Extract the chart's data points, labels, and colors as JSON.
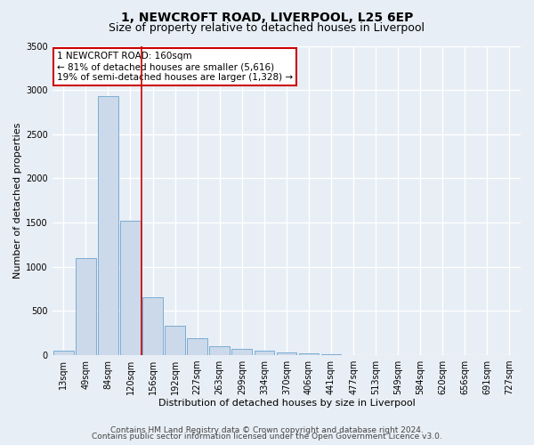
{
  "title": "1, NEWCROFT ROAD, LIVERPOOL, L25 6EP",
  "subtitle": "Size of property relative to detached houses in Liverpool",
  "xlabel": "Distribution of detached houses by size in Liverpool",
  "ylabel": "Number of detached properties",
  "bar_labels": [
    "13sqm",
    "49sqm",
    "84sqm",
    "120sqm",
    "156sqm",
    "192sqm",
    "227sqm",
    "263sqm",
    "299sqm",
    "334sqm",
    "370sqm",
    "406sqm",
    "441sqm",
    "477sqm",
    "513sqm",
    "549sqm",
    "584sqm",
    "620sqm",
    "656sqm",
    "691sqm",
    "727sqm"
  ],
  "bar_values": [
    50,
    1100,
    2930,
    1520,
    650,
    330,
    195,
    100,
    75,
    50,
    30,
    20,
    5,
    0,
    0,
    0,
    0,
    0,
    0,
    0,
    0
  ],
  "bar_color": "#ccd9ea",
  "bar_edge_color": "#7aadd4",
  "vline_pos": 3.5,
  "vline_color": "#cc0000",
  "annotation_text": "1 NEWCROFT ROAD: 160sqm\n← 81% of detached houses are smaller (5,616)\n19% of semi-detached houses are larger (1,328) →",
  "annotation_box_color": "#ffffff",
  "annotation_box_edge": "#cc0000",
  "ylim": [
    0,
    3500
  ],
  "yticks": [
    0,
    500,
    1000,
    1500,
    2000,
    2500,
    3000,
    3500
  ],
  "footer1": "Contains HM Land Registry data © Crown copyright and database right 2024.",
  "footer2": "Contains public sector information licensed under the Open Government Licence v3.0.",
  "bg_color": "#e8eef5",
  "plot_bg_color": "#e8eef5",
  "title_fontsize": 10,
  "subtitle_fontsize": 9,
  "label_fontsize": 8,
  "tick_fontsize": 7,
  "annotation_fontsize": 7.5,
  "footer_fontsize": 6.5
}
